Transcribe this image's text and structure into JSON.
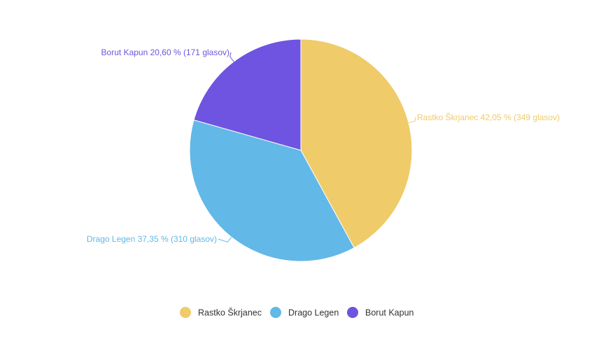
{
  "chart_data": {
    "type": "pie",
    "title": "",
    "legend_position": "bottom",
    "slices": [
      {
        "name": "Rastko Škrjanec",
        "value": 349,
        "percent": 42.05,
        "label": "Rastko Škrjanec 42,05 % (349 glasov)",
        "color": "#EFCB6A"
      },
      {
        "name": "Drago Legen",
        "value": 310,
        "percent": 37.35,
        "label": "Drago Legen 37,35 % (310 glasov)",
        "color": "#62B8E7"
      },
      {
        "name": "Borut Kapun",
        "value": 171,
        "percent": 20.6,
        "label": "Borut Kapun 20,60 % (171 glasov)",
        "color": "#6E54E0"
      }
    ]
  }
}
